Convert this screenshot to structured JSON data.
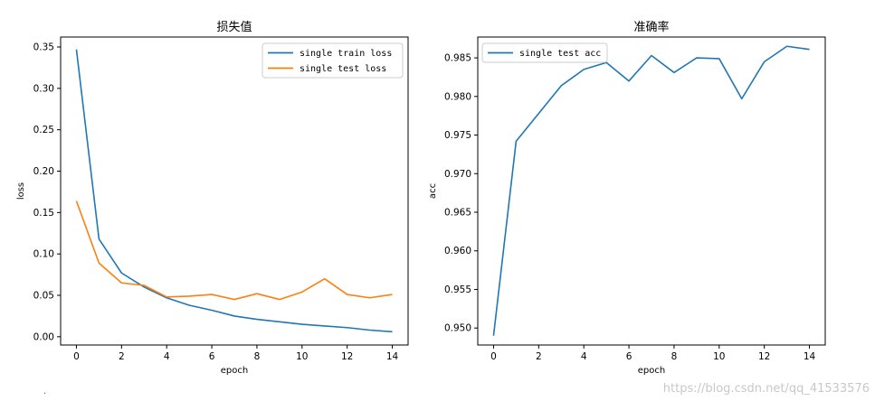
{
  "chart_data": [
    {
      "type": "line",
      "title": "损失值",
      "xlabel": "epoch",
      "ylabel": "loss",
      "xlim": [
        -0.7,
        14.7
      ],
      "ylim": [
        -0.01,
        0.362
      ],
      "xticks": [
        0,
        2,
        4,
        6,
        8,
        10,
        12,
        14
      ],
      "yticks": [
        0.0,
        0.05,
        0.1,
        0.15,
        0.2,
        0.25,
        0.3,
        0.35
      ],
      "ytick_labels": [
        "0.00",
        "0.05",
        "0.10",
        "0.15",
        "0.20",
        "0.25",
        "0.30",
        "0.35"
      ],
      "legend_position": "upper right",
      "grid": false,
      "x": [
        0,
        1,
        2,
        3,
        4,
        5,
        6,
        7,
        8,
        9,
        10,
        11,
        12,
        13,
        14
      ],
      "series": [
        {
          "name": "single train loss",
          "color": "#1f77b4",
          "values": [
            0.347,
            0.118,
            0.077,
            0.06,
            0.047,
            0.038,
            0.032,
            0.025,
            0.021,
            0.018,
            0.015,
            0.013,
            0.011,
            0.008,
            0.006
          ]
        },
        {
          "name": "single test loss",
          "color": "#ff7f0e",
          "values": [
            0.164,
            0.089,
            0.065,
            0.062,
            0.048,
            0.049,
            0.051,
            0.045,
            0.052,
            0.045,
            0.054,
            0.07,
            0.051,
            0.047,
            0.051
          ]
        }
      ]
    },
    {
      "type": "line",
      "title": "准确率",
      "xlabel": "epoch",
      "ylabel": "acc",
      "xlim": [
        -0.7,
        14.7
      ],
      "ylim": [
        0.9478,
        0.9877
      ],
      "xticks": [
        0,
        2,
        4,
        6,
        8,
        10,
        12,
        14
      ],
      "yticks": [
        0.95,
        0.955,
        0.96,
        0.965,
        0.97,
        0.975,
        0.98,
        0.985
      ],
      "ytick_labels": [
        "0.950",
        "0.955",
        "0.960",
        "0.965",
        "0.970",
        "0.975",
        "0.980",
        "0.985"
      ],
      "legend_position": "upper left",
      "grid": false,
      "x": [
        0,
        1,
        2,
        3,
        4,
        5,
        6,
        7,
        8,
        9,
        10,
        11,
        12,
        13,
        14
      ],
      "series": [
        {
          "name": "single test acc",
          "color": "#1f77b4",
          "values": [
            0.949,
            0.9742,
            0.9778,
            0.9814,
            0.9835,
            0.9844,
            0.982,
            0.9853,
            0.9831,
            0.985,
            0.9849,
            0.9797,
            0.9845,
            0.9865,
            0.9861
          ]
        }
      ]
    }
  ],
  "watermark": "https://blog.csdn.net/qq_41533576",
  "corner_mark": "·"
}
